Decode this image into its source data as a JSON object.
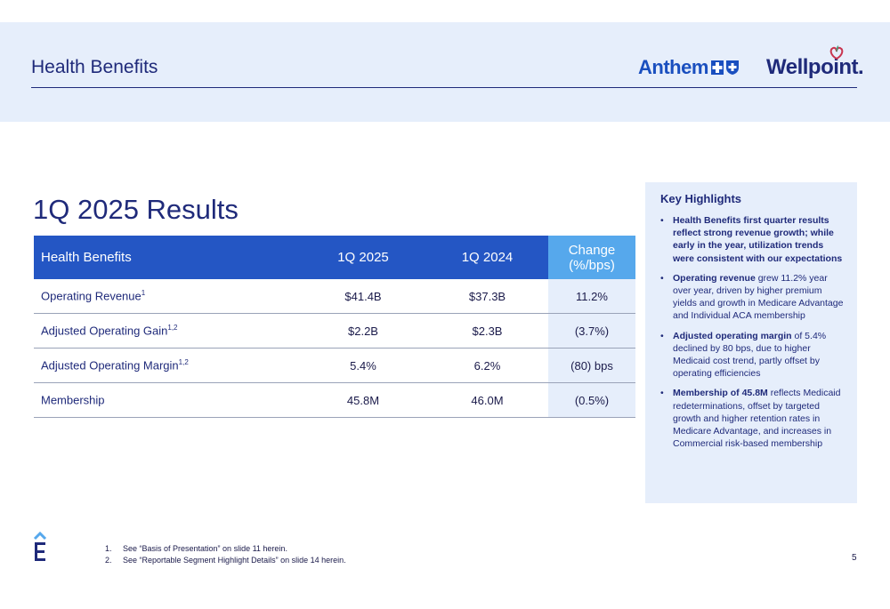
{
  "header": {
    "title": "Health Benefits",
    "logo_anthem": "Anthem",
    "logo_wellpoint": "Wellpoint."
  },
  "section_title": "1Q 2025 Results",
  "table": {
    "columns": [
      "Health Benefits",
      "1Q 2025",
      "1Q 2024",
      "Change (%/bps)"
    ],
    "rows": [
      {
        "label": "Operating Revenue",
        "sup": "1",
        "q2025": "$41.4B",
        "q2024": "$37.3B",
        "change": "11.2%"
      },
      {
        "label": "Adjusted Operating Gain",
        "sup": "1,2",
        "q2025": "$2.2B",
        "q2024": "$2.3B",
        "change": "(3.7%)"
      },
      {
        "label": "Adjusted Operating Margin",
        "sup": "1,2",
        "q2025": "5.4%",
        "q2024": "6.2%",
        "change": "(80) bps"
      },
      {
        "label": "Membership",
        "sup": "",
        "q2025": "45.8M",
        "q2024": "46.0M",
        "change": "(0.5%)"
      }
    ]
  },
  "highlights": {
    "title": "Key Highlights",
    "items": [
      {
        "bold": "Health Benefits first quarter results reflect strong revenue growth; while early in the year, utilization trends were consistent with our expectations",
        "text": ""
      },
      {
        "bold": "Operating revenue",
        "text": " grew 11.2% year over year, driven by higher premium yields and growth in Medicare Advantage and Individual ACA membership"
      },
      {
        "bold": "Adjusted operating margin",
        "text": " of 5.4% declined by 80 bps, due to higher Medicaid cost trend, partly offset by operating efficiencies"
      },
      {
        "bold": "Membership of 45.8M",
        "text": " reflects Medicaid redeterminations, offset by targeted growth and higher retention rates in Medicare Advantage, and increases in Commercial risk-based membership"
      }
    ]
  },
  "footnotes": [
    {
      "num": "1.",
      "text": "See “Basis of Presentation” on slide 11 herein."
    },
    {
      "num": "2.",
      "text": "See “Reportable Segment Highlight Details” on slide 14 herein."
    }
  ],
  "page_number": "5",
  "colors": {
    "navy": "#1f2a7a",
    "header_blue": "#2456c4",
    "change_blue": "#56a8ec",
    "light_band": "#e6eefb"
  }
}
